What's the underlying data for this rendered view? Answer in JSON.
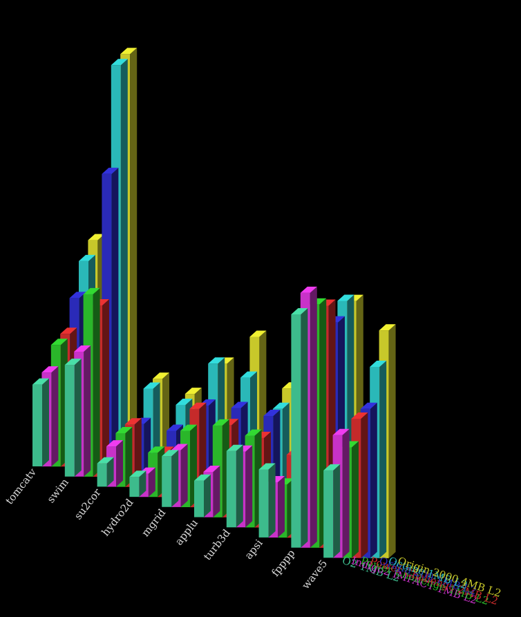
{
  "chart_data": {
    "type": "bar",
    "chart_style": "3d-grouped-bar",
    "categories": [
      "tomcatv",
      "swim",
      "su2cor",
      "hydro2d",
      "mgrid",
      "applu",
      "turb3d",
      "apsi",
      "fpppp",
      "wave5"
    ],
    "series": [
      {
        "name": "O2 1MB L2",
        "color": "#3dbb8c",
        "values": [
          148,
          202,
          42,
          36,
          92,
          66,
          138,
          123,
          422,
          158
        ]
      },
      {
        "name": "Indigo2 IMPACT 1MB L2",
        "color": "#c832c8",
        "values": [
          170,
          226,
          73,
          42,
          103,
          82,
          137,
          100,
          461,
          222
        ]
      },
      {
        "name": "Power Challenge 1MB L2",
        "color": "#2ab62a",
        "values": [
          220,
          330,
          97,
          80,
          138,
          166,
          166,
          96,
          440,
          200
        ]
      },
      {
        "name": "Power Challenge 2MB L2",
        "color": "#c52a2a",
        "values": [
          240,
          310,
          113,
          80,
          178,
          167,
          162,
          150,
          438,
          252
        ]
      },
      {
        "name": "Origin 200 1MB L2",
        "color": "#2a2ab8",
        "values": [
          305,
          548,
          114,
          120,
          184,
          198,
          202,
          263,
          408,
          270
        ]
      },
      {
        "name": "Octane 1MB L2",
        "color": "#2ab8b8",
        "values": [
          372,
          745,
          178,
          167,
          260,
          253,
          215,
          276,
          447,
          346
        ]
      },
      {
        "name": "Origin 2000 4MB L2",
        "color": "#c8c82a",
        "values": [
          410,
          765,
          196,
          187,
          260,
          327,
          252,
          285,
          447,
          412
        ]
      }
    ],
    "title": "",
    "xlabel": "",
    "ylabel": "",
    "grid": false,
    "legend_position": "bottom-right"
  }
}
